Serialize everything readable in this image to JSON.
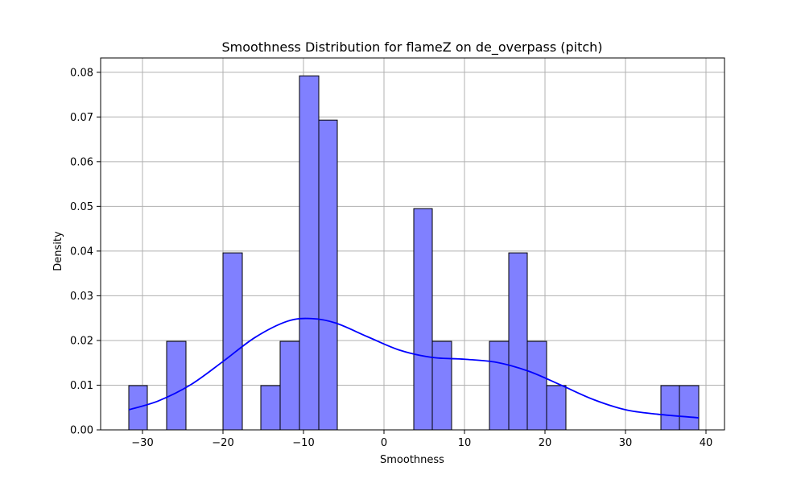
{
  "chart_data": {
    "type": "bar",
    "title": "Smoothness Distribution for flameZ on de_overpass (pitch)",
    "xlabel": "Smoothness",
    "ylabel": "Density",
    "xlim": [
      -35.2,
      42.3
    ],
    "ylim": [
      0,
      0.0832
    ],
    "grid": true,
    "bar_color": "#8080ff",
    "bar_edge_color": "#000000",
    "kde_color": "#0000ff",
    "xticks": [
      -30,
      -20,
      -10,
      0,
      10,
      20,
      30,
      40
    ],
    "xtick_labels": [
      "−30",
      "−20",
      "−10",
      "0",
      "10",
      "20",
      "30",
      "40"
    ],
    "yticks": [
      0,
      0.01,
      0.02,
      0.03,
      0.04,
      0.05,
      0.06,
      0.07,
      0.08
    ],
    "ytick_labels": [
      "0.00",
      "0.01",
      "0.02",
      "0.03",
      "0.04",
      "0.05",
      "0.06",
      "0.07",
      "0.08"
    ],
    "bars": [
      {
        "x0": -31.7,
        "x1": -29.4,
        "value": 0.0099
      },
      {
        "x0": -27.0,
        "x1": -24.6,
        "value": 0.0198
      },
      {
        "x0": -20.0,
        "x1": -17.6,
        "value": 0.0396
      },
      {
        "x0": -15.3,
        "x1": -12.9,
        "value": 0.0099
      },
      {
        "x0": -12.9,
        "x1": -10.5,
        "value": 0.0198
      },
      {
        "x0": -10.5,
        "x1": -8.1,
        "value": 0.0792
      },
      {
        "x0": -8.1,
        "x1": -5.8,
        "value": 0.0693
      },
      {
        "x0": 3.7,
        "x1": 6.0,
        "value": 0.0495
      },
      {
        "x0": 6.0,
        "x1": 8.4,
        "value": 0.0198
      },
      {
        "x0": 13.1,
        "x1": 15.5,
        "value": 0.0198
      },
      {
        "x0": 15.5,
        "x1": 17.8,
        "value": 0.0396
      },
      {
        "x0": 17.8,
        "x1": 20.2,
        "value": 0.0198
      },
      {
        "x0": 20.2,
        "x1": 22.6,
        "value": 0.0099
      },
      {
        "x0": 34.4,
        "x1": 36.7,
        "value": 0.0099
      },
      {
        "x0": 36.7,
        "x1": 39.1,
        "value": 0.0099
      }
    ],
    "kde": {
      "x": [
        -31.7,
        -28,
        -24,
        -20,
        -16,
        -12,
        -9,
        -6,
        -2,
        2,
        6,
        10,
        14,
        18,
        22,
        26,
        30,
        34,
        39.1
      ],
      "y": [
        0.0045,
        0.0065,
        0.0101,
        0.0153,
        0.0207,
        0.0243,
        0.0249,
        0.0239,
        0.0208,
        0.0178,
        0.0162,
        0.0158,
        0.0151,
        0.0131,
        0.01,
        0.0068,
        0.0045,
        0.0035,
        0.0027
      ]
    }
  }
}
